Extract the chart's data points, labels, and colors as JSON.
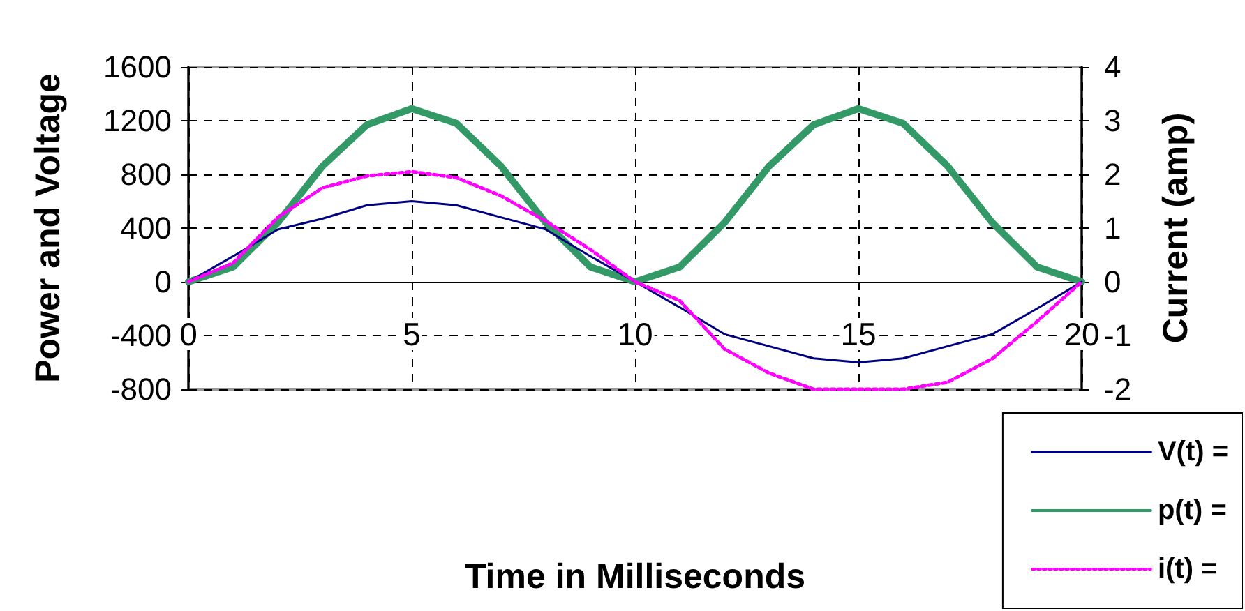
{
  "chart_data": {
    "type": "line",
    "xlabel": "Time in Milliseconds",
    "ylabel": "Power and Voltage",
    "y2label": "Current (amp)",
    "x": [
      0,
      1,
      2,
      3,
      4,
      5,
      6,
      7,
      8,
      9,
      10,
      11,
      12,
      13,
      14,
      15,
      16,
      17,
      18,
      19,
      20
    ],
    "xlim": [
      0,
      20
    ],
    "xticks": [
      0,
      5,
      10,
      15,
      20
    ],
    "ylim": [
      -800,
      1600
    ],
    "yticks": [
      -800,
      -400,
      0,
      400,
      800,
      1200,
      1600
    ],
    "y2lim": [
      -2,
      4
    ],
    "y2ticks": [
      -2,
      -1,
      0,
      1,
      2,
      3,
      4
    ],
    "series": [
      {
        "name": "V(t) =",
        "color": "#000080",
        "line_style": "solid",
        "values": [
          0,
          190,
          390,
          470,
          570,
          600,
          570,
          480,
          390,
          190,
          0,
          -190,
          -390,
          -480,
          -570,
          -600,
          -570,
          -480,
          -390,
          -200,
          0
        ]
      },
      {
        "name": "p(t) =",
        "color": "#339966",
        "line_style": "solid",
        "values": [
          0,
          110,
          440,
          860,
          1170,
          1290,
          1180,
          860,
          440,
          110,
          0,
          110,
          440,
          860,
          1170,
          1290,
          1180,
          860,
          440,
          110,
          0
        ]
      },
      {
        "name": "i(t) =",
        "color": "#ff00ff",
        "line_style": "dotted",
        "axis": "y2",
        "values": [
          0,
          0.35,
          1.2,
          1.75,
          1.97,
          2.05,
          1.94,
          1.6,
          1.13,
          0.6,
          0,
          -0.35,
          -1.25,
          -1.7,
          -2,
          -2,
          -2,
          -1.87,
          -1.43,
          -0.74,
          0
        ]
      }
    ],
    "grid": true,
    "legend": "bottom right",
    "marker": "none"
  }
}
